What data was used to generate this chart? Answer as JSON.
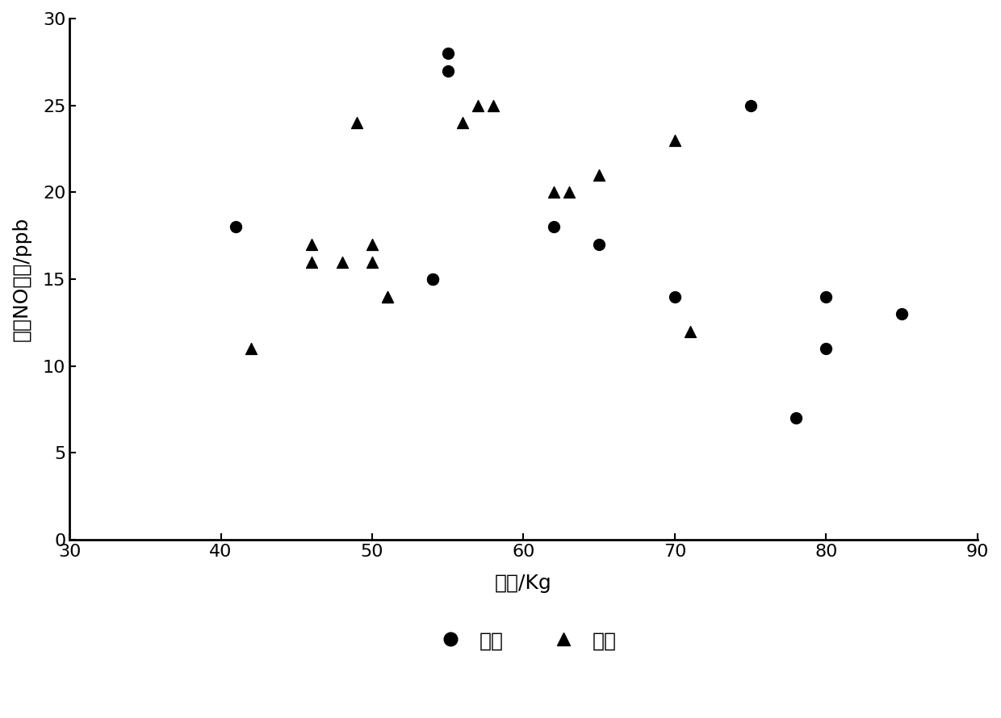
{
  "sick_x": [
    41,
    55,
    55,
    54,
    54,
    62,
    65,
    70,
    75,
    78,
    80,
    80,
    85
  ],
  "sick_y": [
    18,
    28,
    27,
    15,
    15,
    18,
    17,
    14,
    25,
    7,
    14,
    11,
    13
  ],
  "healthy_x": [
    42,
    46,
    46,
    48,
    49,
    50,
    50,
    51,
    51,
    56,
    57,
    58,
    62,
    63,
    65,
    70,
    71
  ],
  "healthy_y": [
    11,
    17,
    16,
    16,
    24,
    17,
    16,
    14,
    14,
    24,
    25,
    25,
    20,
    20,
    21,
    23,
    12
  ],
  "xlabel": "体重/Kg",
  "ylabel": "呼气NO浓度/ppb",
  "xlim": [
    30,
    90
  ],
  "ylim": [
    0,
    30
  ],
  "xticks": [
    30,
    40,
    50,
    60,
    70,
    80,
    90
  ],
  "yticks": [
    0,
    5,
    10,
    15,
    20,
    25,
    30
  ],
  "legend_sick": "患病",
  "legend_healthy": "健康",
  "marker_color": "#000000",
  "background_color": "#ffffff",
  "marker_size": 100
}
